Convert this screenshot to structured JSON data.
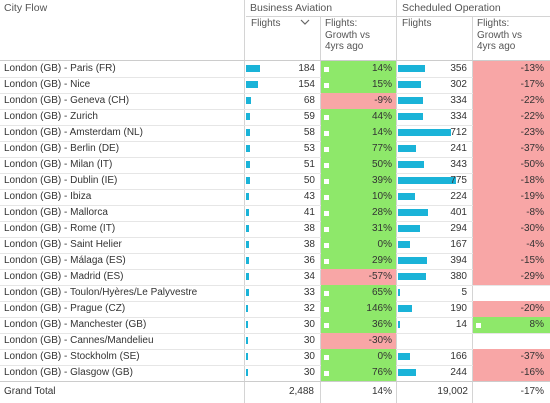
{
  "header": {
    "city_flow": "City Flow",
    "business_aviation": "Business Aviation",
    "scheduled_operation": "Scheduled Operation",
    "flights": "Flights",
    "growth": [
      "Flights:",
      "Growth vs",
      "4yrs ago"
    ],
    "sort_icon": "chevron-down-icon"
  },
  "colors": {
    "bar": "#1ab3d8",
    "positive": "#8ee86a",
    "negative": "#f8a6a6"
  },
  "rows": [
    {
      "city": "London (GB) - Paris (FR)",
      "ba_flights": "184",
      "ba_flights_v": 184,
      "ba_growth": "14%",
      "ba_growth_v": 14,
      "so_flights": "356",
      "so_flights_v": 356,
      "so_growth": "-13%",
      "so_growth_v": -13
    },
    {
      "city": "London (GB) - Nice",
      "ba_flights": "154",
      "ba_flights_v": 154,
      "ba_growth": "15%",
      "ba_growth_v": 15,
      "so_flights": "302",
      "so_flights_v": 302,
      "so_growth": "-17%",
      "so_growth_v": -17
    },
    {
      "city": "London (GB) - Geneva (CH)",
      "ba_flights": "68",
      "ba_flights_v": 68,
      "ba_growth": "-9%",
      "ba_growth_v": -9,
      "so_flights": "334",
      "so_flights_v": 334,
      "so_growth": "-22%",
      "so_growth_v": -22
    },
    {
      "city": "London (GB) - Zurich",
      "ba_flights": "59",
      "ba_flights_v": 59,
      "ba_growth": "44%",
      "ba_growth_v": 44,
      "so_flights": "334",
      "so_flights_v": 334,
      "so_growth": "-22%",
      "so_growth_v": -22
    },
    {
      "city": "London (GB) - Amsterdam (NL)",
      "ba_flights": "58",
      "ba_flights_v": 58,
      "ba_growth": "14%",
      "ba_growth_v": 14,
      "so_flights": "712",
      "so_flights_v": 712,
      "so_growth": "-23%",
      "so_growth_v": -23
    },
    {
      "city": "London (GB) - Berlin (DE)",
      "ba_flights": "53",
      "ba_flights_v": 53,
      "ba_growth": "77%",
      "ba_growth_v": 77,
      "so_flights": "241",
      "so_flights_v": 241,
      "so_growth": "-37%",
      "so_growth_v": -37
    },
    {
      "city": "London (GB) - Milan (IT)",
      "ba_flights": "51",
      "ba_flights_v": 51,
      "ba_growth": "50%",
      "ba_growth_v": 50,
      "so_flights": "343",
      "so_flights_v": 343,
      "so_growth": "-50%",
      "so_growth_v": -50
    },
    {
      "city": "London (GB) - Dublin (IE)",
      "ba_flights": "50",
      "ba_flights_v": 50,
      "ba_growth": "39%",
      "ba_growth_v": 39,
      "so_flights": "775",
      "so_flights_v": 775,
      "so_growth": "-18%",
      "so_growth_v": -18
    },
    {
      "city": "London (GB) - Ibiza",
      "ba_flights": "43",
      "ba_flights_v": 43,
      "ba_growth": "10%",
      "ba_growth_v": 10,
      "so_flights": "224",
      "so_flights_v": 224,
      "so_growth": "-19%",
      "so_growth_v": -19
    },
    {
      "city": "London (GB) - Mallorca",
      "ba_flights": "41",
      "ba_flights_v": 41,
      "ba_growth": "28%",
      "ba_growth_v": 28,
      "so_flights": "401",
      "so_flights_v": 401,
      "so_growth": "-8%",
      "so_growth_v": -8
    },
    {
      "city": "London (GB) - Rome (IT)",
      "ba_flights": "38",
      "ba_flights_v": 38,
      "ba_growth": "31%",
      "ba_growth_v": 31,
      "so_flights": "294",
      "so_flights_v": 294,
      "so_growth": "-30%",
      "so_growth_v": -30
    },
    {
      "city": "London (GB) - Saint Helier",
      "ba_flights": "38",
      "ba_flights_v": 38,
      "ba_growth": "0%",
      "ba_growth_v": 0,
      "so_flights": "167",
      "so_flights_v": 167,
      "so_growth": "-4%",
      "so_growth_v": -4
    },
    {
      "city": "London (GB) - Málaga (ES)",
      "ba_flights": "36",
      "ba_flights_v": 36,
      "ba_growth": "29%",
      "ba_growth_v": 29,
      "so_flights": "394",
      "so_flights_v": 394,
      "so_growth": "-15%",
      "so_growth_v": -15
    },
    {
      "city": "London (GB) - Madrid (ES)",
      "ba_flights": "34",
      "ba_flights_v": 34,
      "ba_growth": "-57%",
      "ba_growth_v": -57,
      "so_flights": "380",
      "so_flights_v": 380,
      "so_growth": "-29%",
      "so_growth_v": -29
    },
    {
      "city": "London (GB) - Toulon/Hyères/Le Palyvestre",
      "ba_flights": "33",
      "ba_flights_v": 33,
      "ba_growth": "65%",
      "ba_growth_v": 65,
      "so_flights": "5",
      "so_flights_v": 5,
      "so_growth": "",
      "so_growth_v": null
    },
    {
      "city": "London (GB) - Prague (CZ)",
      "ba_flights": "32",
      "ba_flights_v": 32,
      "ba_growth": "146%",
      "ba_growth_v": 146,
      "so_flights": "190",
      "so_flights_v": 190,
      "so_growth": "-20%",
      "so_growth_v": -20
    },
    {
      "city": "London (GB) - Manchester (GB)",
      "ba_flights": "30",
      "ba_flights_v": 30,
      "ba_growth": "36%",
      "ba_growth_v": 36,
      "so_flights": "14",
      "so_flights_v": 14,
      "so_growth": "8%",
      "so_growth_v": 8
    },
    {
      "city": "London (GB) - Cannes/Mandelieu",
      "ba_flights": "30",
      "ba_flights_v": 30,
      "ba_growth": "-30%",
      "ba_growth_v": -30,
      "so_flights": "",
      "so_flights_v": null,
      "so_growth": "",
      "so_growth_v": null
    },
    {
      "city": "London (GB) - Stockholm (SE)",
      "ba_flights": "30",
      "ba_flights_v": 30,
      "ba_growth": "0%",
      "ba_growth_v": 0,
      "so_flights": "166",
      "so_flights_v": 166,
      "so_growth": "-37%",
      "so_growth_v": -37
    },
    {
      "city": "London (GB) - Glasgow (GB)",
      "ba_flights": "30",
      "ba_flights_v": 30,
      "ba_growth": "76%",
      "ba_growth_v": 76,
      "so_flights": "244",
      "so_flights_v": 244,
      "so_growth": "-16%",
      "so_growth_v": -16
    }
  ],
  "total": {
    "label": "Grand Total",
    "ba_flights": "2,488",
    "ba_growth": "14%",
    "so_flights": "19,002",
    "so_growth": "-17%"
  }
}
